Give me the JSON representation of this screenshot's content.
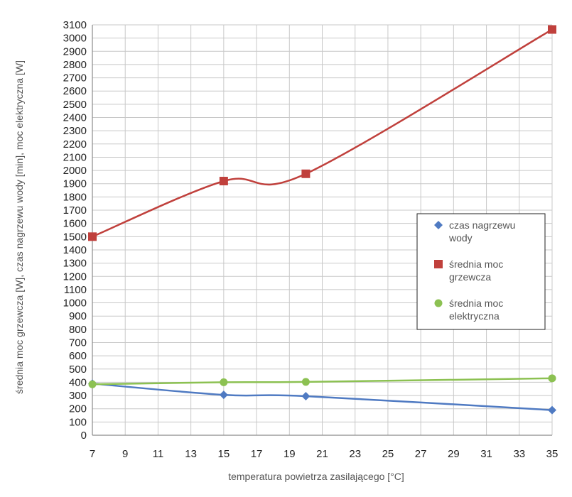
{
  "chart_data": {
    "type": "line",
    "xlabel": "temperatura powietrza zasilającego [°C]",
    "ylabel": "średnia moc grzewcza [W], czas nagrzewu wody [min], moc elektryczna [W]",
    "xlim": [
      7,
      35
    ],
    "ylim": [
      0,
      3100
    ],
    "x_ticks": [
      7,
      9,
      11,
      13,
      15,
      17,
      19,
      21,
      23,
      25,
      27,
      29,
      31,
      33,
      35
    ],
    "y_tick_step": 100,
    "grid": true,
    "legend_position": "right",
    "x": [
      7,
      15,
      20,
      35
    ],
    "series": [
      {
        "name": "czas nagrzewu wody",
        "legend_lines": [
          "czas nagrzewu",
          "wody"
        ],
        "color": "#4F7AC2",
        "marker": "diamond",
        "values": [
          390,
          305,
          295,
          190
        ]
      },
      {
        "name": "średnia moc grzewcza",
        "legend_lines": [
          "średnia moc",
          "grzewcza"
        ],
        "color": "#C0403C",
        "marker": "square",
        "values": [
          1500,
          1920,
          1975,
          3065
        ]
      },
      {
        "name": "średnia moc elektryczna",
        "legend_lines": [
          "średnia moc",
          "elektryczna"
        ],
        "color": "#8CC152",
        "marker": "circle",
        "values": [
          385,
          400,
          403,
          430
        ]
      }
    ]
  }
}
